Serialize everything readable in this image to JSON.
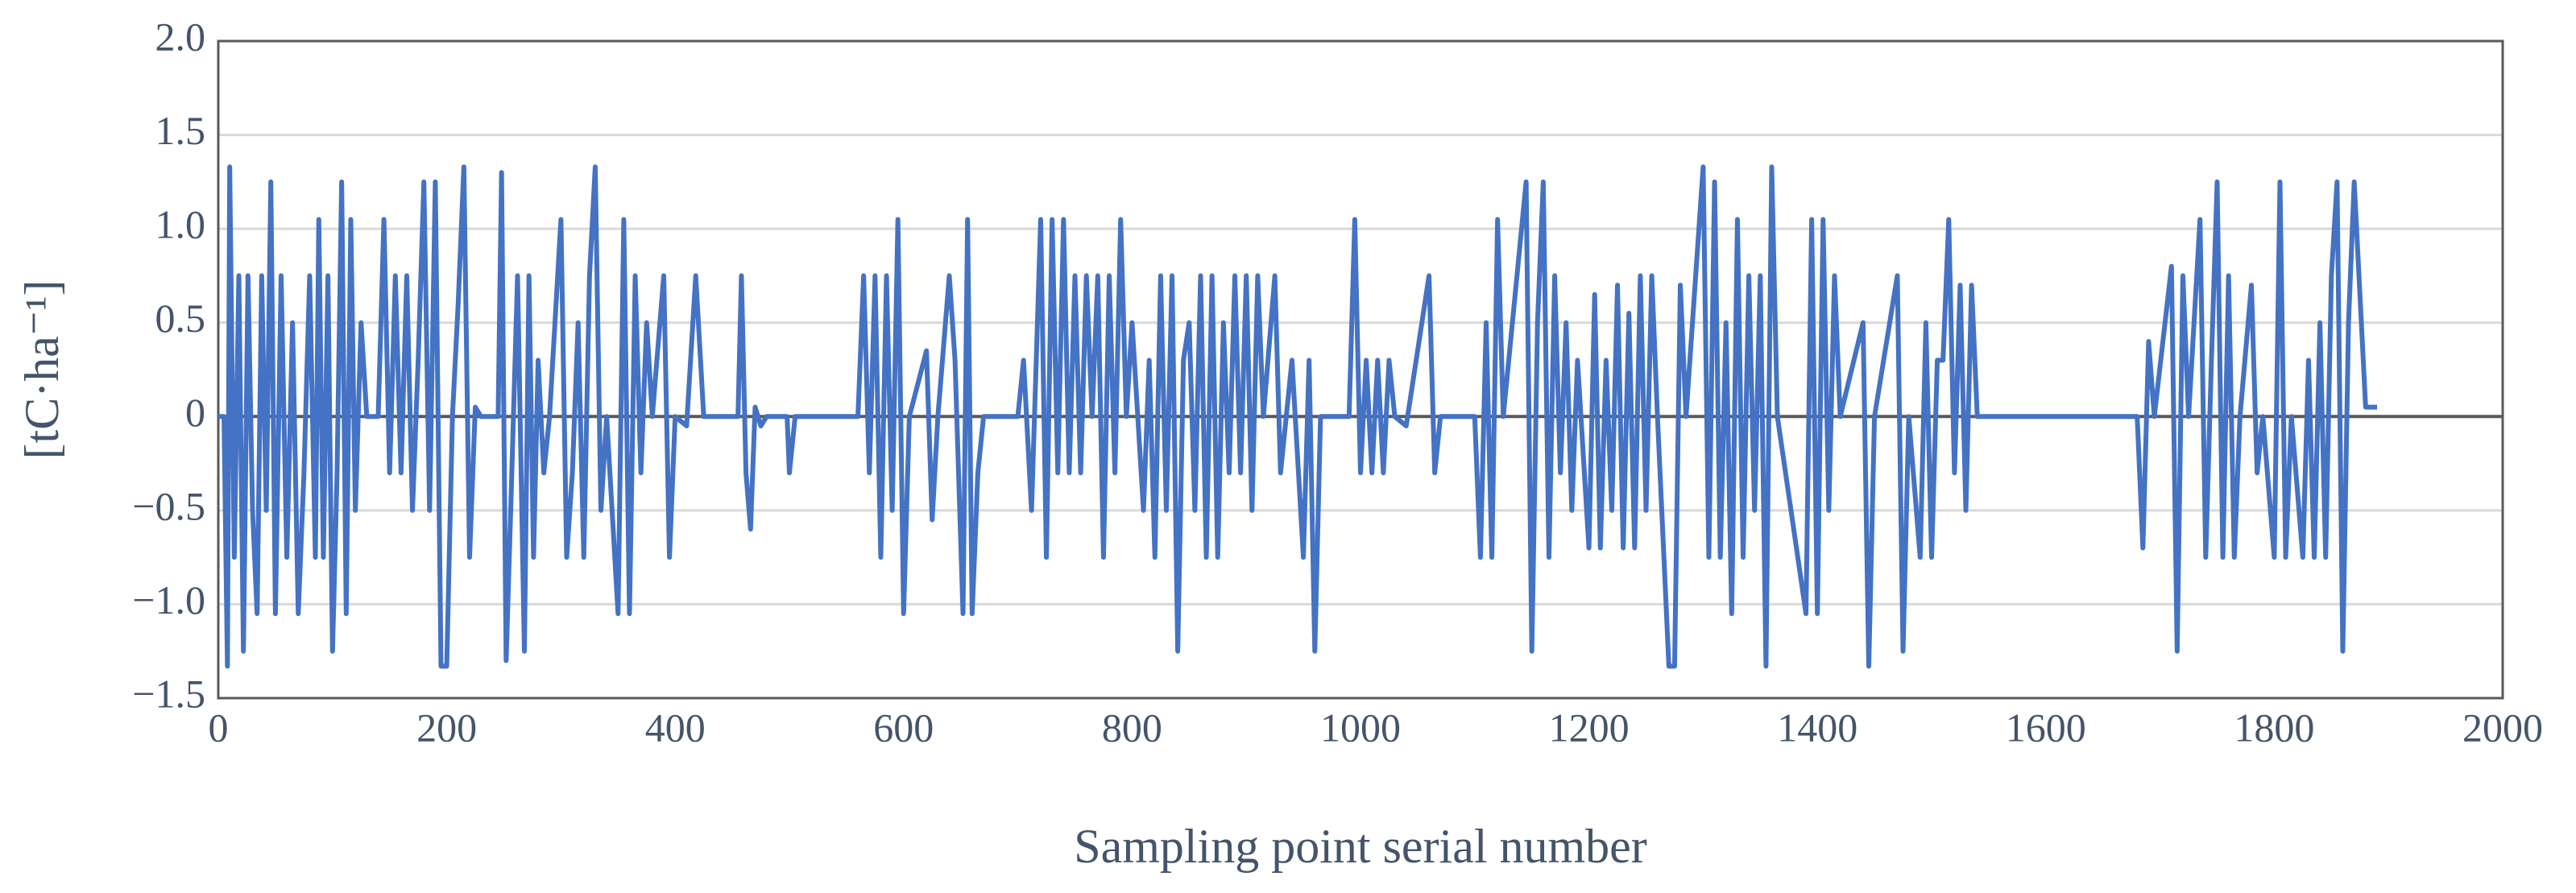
{
  "chart_data": {
    "type": "line",
    "x_label": "Sampling point serial number",
    "y_label": "[tC·ha⁻¹]",
    "xlim": [
      0,
      2000
    ],
    "xticks": [
      0,
      200,
      400,
      600,
      800,
      1000,
      1200,
      1400,
      1600,
      1800,
      2000
    ],
    "ylim": [
      -1.5,
      2.0
    ],
    "yticks": [
      {
        "value": -1.5,
        "label": "−1.5"
      },
      {
        "value": -1.0,
        "label": "−1.0"
      },
      {
        "value": -0.5,
        "label": "−0.5"
      },
      0,
      {
        "value": 0.5,
        "label": "0.5"
      },
      {
        "value": 1.0,
        "label": "1.0"
      },
      {
        "value": 1.5,
        "label": "1.5"
      },
      {
        "value": 2.0,
        "label": "2.0"
      }
    ],
    "grid": true,
    "series": [
      {
        "color": "#4472c4",
        "x": [
          0,
          5,
          8,
          10,
          14,
          18,
          22,
          26,
          30,
          34,
          38,
          42,
          46,
          50,
          55,
          60,
          65,
          70,
          75,
          80,
          85,
          88,
          92,
          96,
          100,
          104,
          108,
          112,
          116,
          120,
          125,
          130,
          140,
          145,
          150,
          155,
          160,
          165,
          170,
          175,
          180,
          185,
          190,
          195,
          200,
          205,
          210,
          215,
          220,
          225,
          230,
          245,
          248,
          252,
          256,
          262,
          268,
          272,
          276,
          280,
          285,
          290,
          300,
          305,
          310,
          315,
          320,
          325,
          330,
          335,
          340,
          350,
          355,
          360,
          365,
          370,
          375,
          380,
          390,
          395,
          400,
          410,
          418,
          425,
          455,
          458,
          462,
          466,
          470,
          475,
          480,
          498,
          500,
          505,
          560,
          565,
          570,
          575,
          580,
          585,
          590,
          595,
          600,
          605,
          620,
          625,
          630,
          640,
          645,
          652,
          656,
          660,
          665,
          670,
          700,
          705,
          712,
          720,
          725,
          730,
          735,
          740,
          745,
          750,
          755,
          760,
          765,
          770,
          775,
          780,
          785,
          790,
          795,
          800,
          810,
          815,
          820,
          825,
          830,
          835,
          840,
          845,
          850,
          855,
          860,
          865,
          870,
          875,
          880,
          885,
          890,
          895,
          900,
          905,
          910,
          915,
          925,
          930,
          940,
          950,
          955,
          960,
          965,
          990,
          995,
          1000,
          1005,
          1010,
          1015,
          1020,
          1025,
          1030,
          1040,
          1060,
          1065,
          1070,
          1100,
          1105,
          1110,
          1115,
          1120,
          1125,
          1145,
          1150,
          1155,
          1160,
          1165,
          1170,
          1175,
          1180,
          1185,
          1190,
          1200,
          1205,
          1210,
          1215,
          1220,
          1225,
          1230,
          1235,
          1240,
          1245,
          1250,
          1255,
          1260,
          1270,
          1275,
          1280,
          1285,
          1300,
          1305,
          1310,
          1315,
          1320,
          1325,
          1330,
          1335,
          1340,
          1345,
          1350,
          1355,
          1360,
          1365,
          1390,
          1395,
          1400,
          1405,
          1410,
          1415,
          1420,
          1440,
          1445,
          1450,
          1470,
          1475,
          1480,
          1490,
          1495,
          1500,
          1505,
          1510,
          1515,
          1520,
          1525,
          1530,
          1535,
          1540,
          1680,
          1685,
          1690,
          1695,
          1710,
          1715,
          1720,
          1725,
          1735,
          1740,
          1745,
          1750,
          1755,
          1760,
          1765,
          1770,
          1780,
          1785,
          1790,
          1800,
          1805,
          1810,
          1815,
          1825,
          1830,
          1835,
          1840,
          1845,
          1850,
          1855,
          1860,
          1865,
          1870,
          1880,
          1890
        ],
        "values": [
          0,
          0,
          -1.33,
          1.33,
          -0.75,
          0.75,
          -1.25,
          0.75,
          -0.5,
          -1.05,
          0.75,
          -0.5,
          1.25,
          -1.05,
          0.75,
          -0.75,
          0.5,
          -1.05,
          -0.3,
          0.75,
          -0.75,
          1.05,
          -0.75,
          0.75,
          -1.25,
          -0.3,
          1.25,
          -1.05,
          1.05,
          -0.5,
          0.5,
          0,
          0,
          1.05,
          -0.3,
          0.75,
          -0.3,
          0.75,
          -0.5,
          0.3,
          1.25,
          -0.5,
          1.25,
          -1.33,
          -1.33,
          0,
          0.6,
          1.33,
          -0.75,
          0.05,
          0,
          0,
          1.3,
          -1.3,
          -0.5,
          0.75,
          -1.25,
          0.75,
          -0.75,
          0.3,
          -0.3,
          0,
          1.05,
          -0.75,
          -0.3,
          0.5,
          -0.75,
          0.75,
          1.33,
          -0.5,
          0,
          -1.05,
          1.05,
          -1.05,
          0.75,
          -0.3,
          0.5,
          0,
          0.75,
          -0.75,
          0,
          -0.05,
          0.75,
          0,
          0,
          0.75,
          -0.3,
          -0.6,
          0.05,
          -0.05,
          0,
          0,
          -0.3,
          0,
          0,
          0.75,
          -0.3,
          0.75,
          -0.75,
          0.75,
          -0.5,
          1.05,
          -1.05,
          0,
          0.35,
          -0.55,
          0,
          0.75,
          0.3,
          -1.05,
          1.05,
          -1.05,
          -0.3,
          0,
          0,
          0.3,
          -0.5,
          1.05,
          -0.75,
          1.05,
          -0.3,
          1.05,
          -0.3,
          0.75,
          -0.3,
          0.75,
          0,
          0.75,
          -0.75,
          0.75,
          -0.3,
          1.05,
          0,
          0.5,
          -0.5,
          0.3,
          -0.75,
          0.75,
          -0.5,
          0.75,
          -1.25,
          0.3,
          0.5,
          -0.5,
          0.75,
          -0.75,
          0.75,
          -0.75,
          0.5,
          -0.3,
          0.75,
          -0.3,
          0.75,
          -0.5,
          0.75,
          0,
          0.75,
          -0.3,
          0.3,
          -0.75,
          0.3,
          -1.25,
          0,
          0,
          1.05,
          -0.3,
          0.3,
          -0.3,
          0.3,
          -0.3,
          0.3,
          0,
          -0.05,
          0.75,
          -0.3,
          0,
          0,
          -0.75,
          0.5,
          -0.75,
          1.05,
          0,
          1.25,
          -1.25,
          0.5,
          1.25,
          -0.75,
          0.75,
          -0.3,
          0.5,
          -0.5,
          0.3,
          -0.7,
          0.65,
          -0.7,
          0.3,
          -0.5,
          0.7,
          -0.7,
          0.55,
          -0.7,
          0.75,
          -0.5,
          0.75,
          0,
          -1.33,
          -1.33,
          0.7,
          0,
          1.33,
          -0.75,
          1.25,
          -0.75,
          0.5,
          -1.05,
          1.05,
          -0.75,
          0.75,
          -0.5,
          0.75,
          -1.33,
          1.33,
          0,
          -1.05,
          1.05,
          -1.05,
          1.05,
          -0.5,
          0.75,
          0,
          0.5,
          -1.33,
          0,
          0.75,
          -1.25,
          0,
          -0.75,
          0.5,
          -0.75,
          0.3,
          0.3,
          1.05,
          -0.3,
          0.7,
          -0.5,
          0.7,
          0,
          0,
          -0.7,
          0.4,
          0,
          0.8,
          -1.25,
          0.75,
          0,
          1.05,
          -0.75,
          0.3,
          1.25,
          -0.75,
          0.75,
          -0.75,
          0,
          0.7,
          -0.3,
          0,
          -0.75,
          1.25,
          -0.75,
          0,
          -0.75,
          0.3,
          -0.75,
          0.5,
          -0.75,
          0.75,
          1.25,
          -1.25,
          0.5,
          1.25,
          0.05,
          0.05
        ]
      }
    ]
  }
}
